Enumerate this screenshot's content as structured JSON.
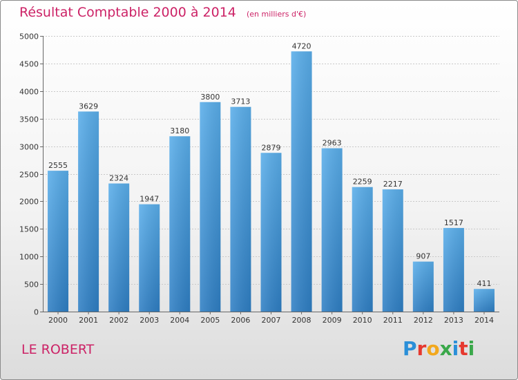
{
  "chart_data": {
    "type": "bar",
    "title": "Résultat Comptable 2000 à 2014",
    "subtitle": "(en milliers d'€)",
    "categories": [
      "2000",
      "2001",
      "2002",
      "2003",
      "2004",
      "2005",
      "2006",
      "2007",
      "2008",
      "2009",
      "2010",
      "2011",
      "2012",
      "2013",
      "2014"
    ],
    "values": [
      2555,
      3629,
      2324,
      1947,
      3180,
      3800,
      3713,
      2879,
      4720,
      2963,
      2259,
      2217,
      907,
      1517,
      411
    ],
    "yticks": [
      "0",
      "500",
      "1000",
      "1500",
      "2000",
      "2500",
      "3000",
      "3500",
      "4000",
      "4500",
      "5000"
    ],
    "ylim": [
      0,
      5000
    ],
    "xlabel": "",
    "ylabel": "",
    "grid": true,
    "bar_color": "#4a9ee0"
  },
  "footer": {
    "commune": "LE ROBERT",
    "brand_letters": [
      {
        "ch": "P",
        "color": "#2a8fd8"
      },
      {
        "ch": "r",
        "color": "#e6392f"
      },
      {
        "ch": "o",
        "color": "#f2a81d"
      },
      {
        "ch": "x",
        "color": "#3aa84a"
      },
      {
        "ch": "i",
        "color": "#2a8fd8"
      },
      {
        "ch": "t",
        "color": "#e6392f"
      },
      {
        "ch": "i",
        "color": "#3aa84a"
      }
    ]
  }
}
